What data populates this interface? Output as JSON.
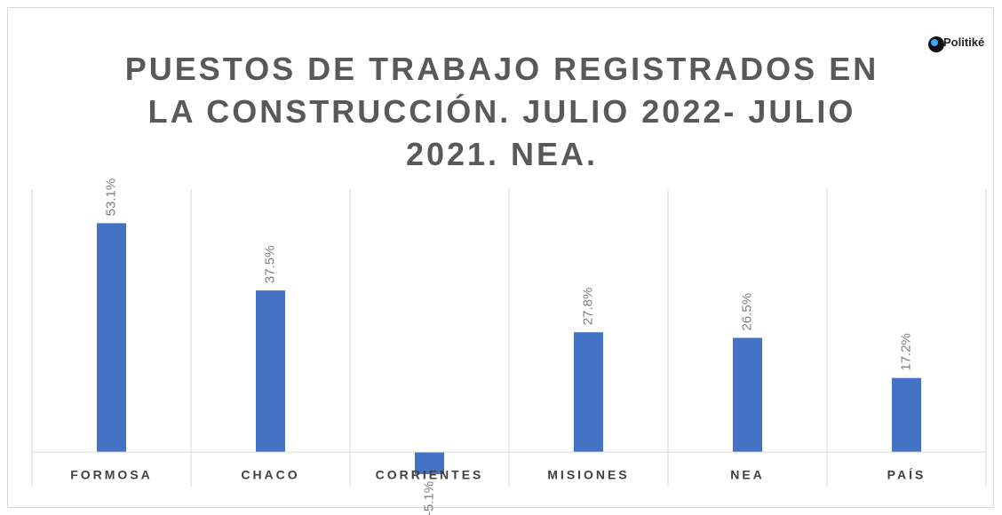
{
  "chart_data": {
    "type": "bar",
    "title": "PUESTOS DE TRABAJO REGISTRADOS EN LA CONSTRUCCIÓN. JULIO 2022- JULIO 2021. NEA.",
    "logo": "Politiké",
    "categories": [
      "FORMOSA",
      "CHACO",
      "CORRIENTES",
      "MISIONES",
      "NEA",
      "PAÍS"
    ],
    "values": [
      53.1,
      37.5,
      -5.1,
      27.8,
      26.5,
      17.2
    ],
    "value_labels": [
      "53.1%",
      "37.5%",
      "-5.1%",
      "27.8%",
      "26.5%",
      "17.2%"
    ],
    "color": "#4472c4",
    "ylim": [
      -8,
      61
    ],
    "grid": true
  }
}
